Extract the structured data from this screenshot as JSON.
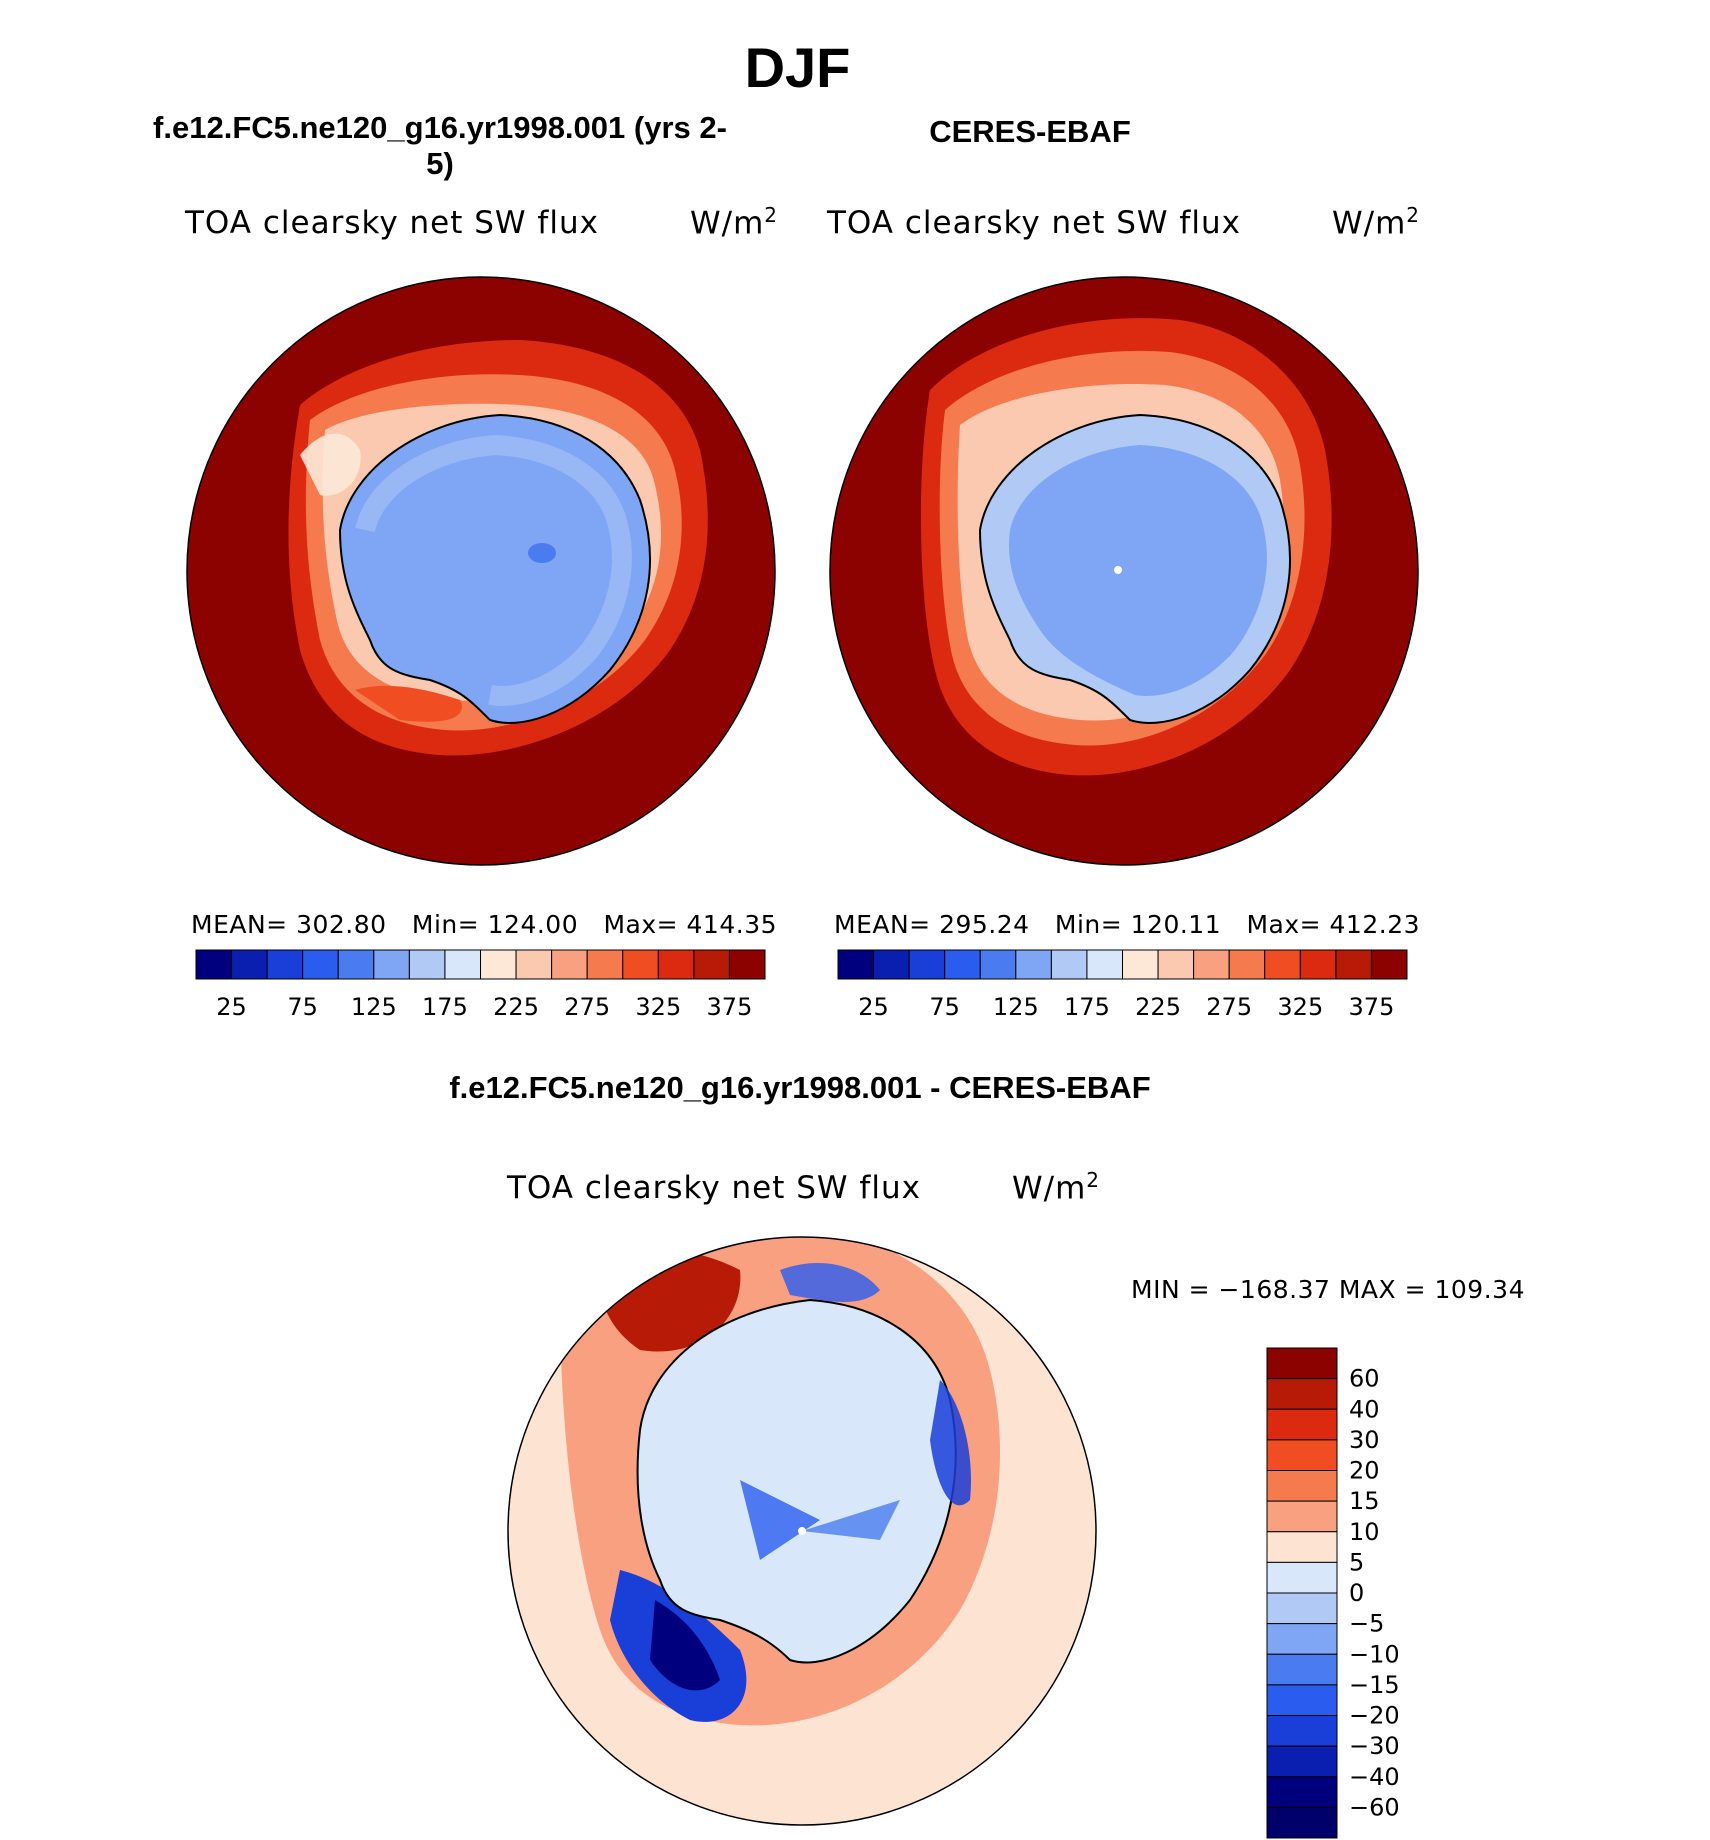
{
  "main_title": "DJF",
  "panels": [
    {
      "case_title": "f.e12.FC5.ne120_g16.yr1998.001 (yrs 2-5)",
      "variable": "TOA clearsky net SW flux",
      "units": "W/m",
      "units_sup": "2",
      "stats": "MEAN= 302.80   Min= 124.00   Max= 414.35"
    },
    {
      "case_title": "CERES-EBAF",
      "variable": "TOA clearsky net SW flux",
      "units": "W/m",
      "units_sup": "2",
      "stats": "MEAN= 295.24   Min= 120.11   Max= 412.23"
    }
  ],
  "diff_panel": {
    "title": "f.e12.FC5.ne120_g16.yr1998.001 - CERES-EBAF",
    "variable": "TOA clearsky net SW flux",
    "units": "W/m",
    "units_sup": "2",
    "minmax": "MIN = −168.37 MAX = 109.34"
  },
  "chart_data": [
    {
      "type": "heatmap",
      "projection": "south polar stereographic",
      "title": "TOA clearsky net SW flux",
      "units": "W/m2",
      "mean": 302.8,
      "min": 124.0,
      "max": 414.35,
      "colorbar_levels": [
        "25",
        "75",
        "125",
        "175",
        "225",
        "275",
        "325",
        "375"
      ],
      "colorbar_colors": [
        "#00007f",
        "#0a1fb0",
        "#1a3ed8",
        "#2a5cf0",
        "#4a7cf0",
        "#7fa5f5",
        "#b0caf5",
        "#d8e8fa",
        "#fde8d8",
        "#fbc8b0",
        "#f9a080",
        "#f57a4e",
        "#f04d22",
        "#dc2a10",
        "#b81a08",
        "#8c0200"
      ]
    },
    {
      "type": "heatmap",
      "projection": "south polar stereographic",
      "title": "TOA clearsky net SW flux",
      "units": "W/m2",
      "mean": 295.24,
      "min": 120.11,
      "max": 412.23,
      "colorbar_levels": [
        "25",
        "75",
        "125",
        "175",
        "225",
        "275",
        "325",
        "375"
      ],
      "colorbar_colors": [
        "#00007f",
        "#0a1fb0",
        "#1a3ed8",
        "#2a5cf0",
        "#4a7cf0",
        "#7fa5f5",
        "#b0caf5",
        "#d8e8fa",
        "#fde8d8",
        "#fbc8b0",
        "#f9a080",
        "#f57a4e",
        "#f04d22",
        "#dc2a10",
        "#b81a08",
        "#8c0200"
      ]
    },
    {
      "type": "heatmap",
      "projection": "south polar stereographic",
      "title": "TOA clearsky net SW flux",
      "units": "W/m2",
      "min": -168.37,
      "max": 109.34,
      "colorbar_levels": [
        "60",
        "40",
        "30",
        "20",
        "15",
        "10",
        "5",
        "0",
        "−5",
        "−10",
        "−15",
        "−20",
        "−30",
        "−40",
        "−60"
      ],
      "colorbar_colors": [
        "#8c0200",
        "#b81a08",
        "#dc2a10",
        "#f04d22",
        "#f57a4e",
        "#f9a080",
        "#fde4d2",
        "#d8e8fa",
        "#b0caf5",
        "#7fa5f5",
        "#4a7cf0",
        "#2a5cf0",
        "#1a3ed8",
        "#0a1fb0",
        "#00007f",
        "#00006a"
      ]
    }
  ]
}
